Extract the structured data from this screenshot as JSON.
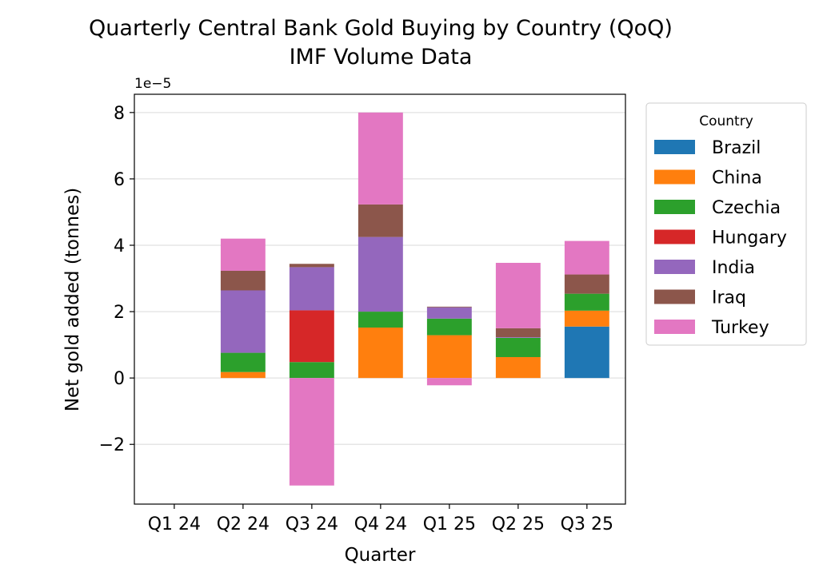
{
  "chart_data": {
    "type": "bar",
    "stacked": true,
    "title": "Quarterly Central Bank Gold Buying by Country (QoQ)",
    "subtitle": "IMF Volume Data",
    "xlabel": "Quarter",
    "ylabel": "Net gold added (tonnes)",
    "y_scale_label": "1e−5",
    "ylim": [
      -3.8,
      8.55
    ],
    "yticks": [
      -2,
      0,
      2,
      4,
      6,
      8
    ],
    "ytick_labels": [
      "−2",
      "0",
      "2",
      "4",
      "6",
      "8"
    ],
    "grid": "y",
    "legend": {
      "title": "Country",
      "placement": "outside-right"
    },
    "categories": [
      "Q1 24",
      "Q2 24",
      "Q3 24",
      "Q4 24",
      "Q1 25",
      "Q2 25",
      "Q3 25"
    ],
    "series": [
      {
        "name": "Brazil",
        "color": "#1f77b4",
        "values": [
          0,
          0,
          0,
          0,
          0,
          0,
          1.55
        ]
      },
      {
        "name": "China",
        "color": "#ff7f0e",
        "values": [
          0,
          0.18,
          0,
          1.52,
          1.29,
          0.63,
          0.48
        ]
      },
      {
        "name": "Czechia",
        "color": "#2ca02c",
        "values": [
          0,
          0.58,
          0.48,
          0.48,
          0.5,
          0.58,
          0.51
        ]
      },
      {
        "name": "Hungary",
        "color": "#d62728",
        "values": [
          0,
          0,
          1.56,
          0,
          0,
          0,
          0
        ]
      },
      {
        "name": "India",
        "color": "#9467bd",
        "values": [
          0,
          1.88,
          1.3,
          2.25,
          0.34,
          0.02,
          0
        ]
      },
      {
        "name": "Iraq",
        "color": "#8c564b",
        "values": [
          0,
          0.59,
          0.1,
          0.98,
          0.02,
          0.27,
          0.58
        ]
      },
      {
        "name": "Turkey",
        "color": "#e377c2",
        "values": [
          0,
          0.97,
          -3.24,
          2.77,
          -0.22,
          1.97,
          1.01
        ]
      }
    ]
  }
}
